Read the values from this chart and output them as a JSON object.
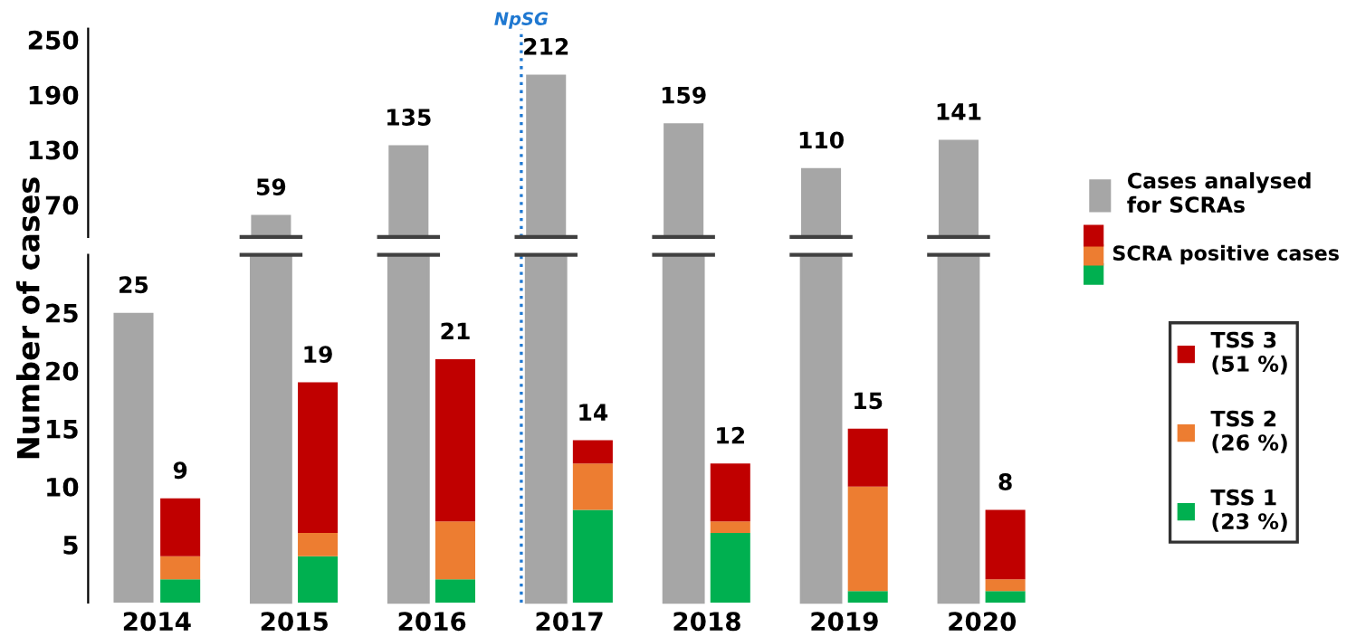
{
  "chart_data": [
    {
      "type": "bar",
      "categories": [
        "2014",
        "2015",
        "2016",
        "2017",
        "2018",
        "2019",
        "2020"
      ],
      "series": [
        {
          "color": "#a6a6a6",
          "values": [
            null,
            59,
            135,
            212,
            159,
            110,
            141
          ]
        }
      ],
      "ylim": [
        35,
        262
      ],
      "yticks": [
        70,
        130,
        190,
        250
      ],
      "tick_labels": "y",
      "data_labels": true,
      "ref_lines": [
        {
          "axis": "x",
          "value": "2017",
          "label": "NpSG",
          "color": "#1f78d1",
          "line_style": "dotted"
        }
      ]
    },
    {
      "type": "bar",
      "categories": [
        "2014",
        "2015",
        "2016",
        "2017",
        "2018",
        "2019",
        "2020"
      ],
      "ylabel": "Number of cases",
      "series": [
        {
          "name": "Cases analysed\nfor SCRAs",
          "color": "#a6a6a6",
          "values": [
            25,
            null,
            null,
            null,
            null,
            null,
            null
          ]
        }
      ],
      "ylim": [
        0,
        30
      ],
      "yticks": [
        5,
        10,
        15,
        20,
        25
      ],
      "tick_labels": "y",
      "data_labels": true,
      "legend": "right",
      "ref_lines": [
        {
          "axis": "x",
          "value": "2017",
          "color": "#1f78d1",
          "line_style": "dotted"
        }
      ]
    },
    {
      "type": "bar",
      "categories": [
        "2014",
        "2015",
        "2016",
        "2017",
        "2018",
        "2019",
        "2020"
      ],
      "stacked": true,
      "series": [
        {
          "name": "TSS 1\n(23 %)",
          "color": "#00b050",
          "values": [
            2,
            4,
            2,
            8,
            6,
            1,
            1
          ]
        },
        {
          "name": "TSS 2\n(26 %)",
          "color": "#ed7d31",
          "values": [
            2,
            2,
            5,
            4,
            1,
            9,
            1
          ]
        },
        {
          "name": "TSS 3\n(51 %)",
          "color": "#c00000",
          "values": [
            5,
            13,
            14,
            2,
            5,
            5,
            6
          ]
        }
      ],
      "totals": [
        "9",
        "19",
        "21",
        "14",
        "12",
        "15",
        "8"
      ],
      "ylim": [
        0,
        30
      ],
      "tick_labels": "x",
      "legend": "right",
      "annotations": [
        "SCRA positive cases"
      ]
    }
  ]
}
